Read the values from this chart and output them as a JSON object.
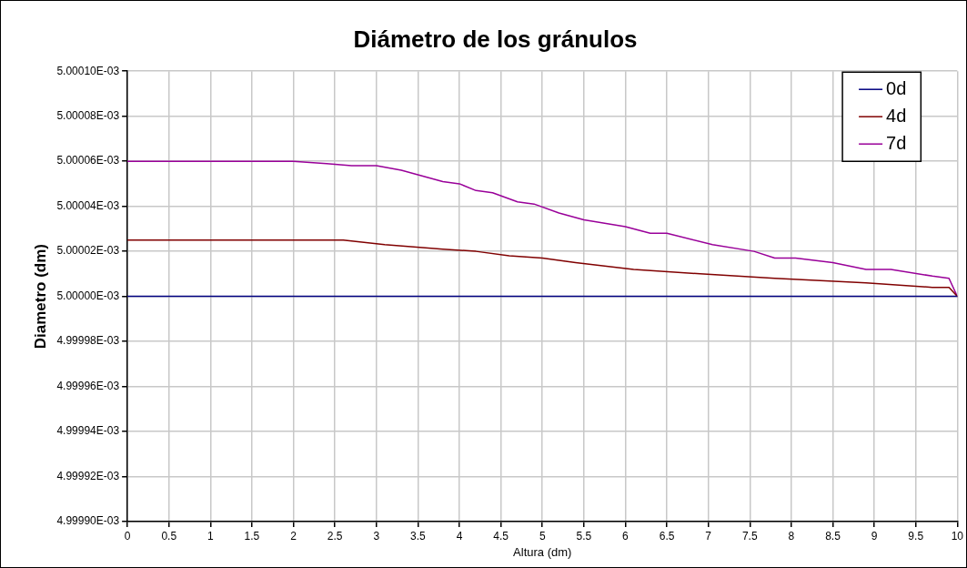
{
  "chart_data": {
    "type": "line",
    "title": "Diámetro de los gránulos",
    "xlabel": "Altura (dm)",
    "ylabel": "Diametro (dm)",
    "series": [
      {
        "name": "0d",
        "color": "#000080",
        "x": [
          0,
          10
        ],
        "values": [
          0.005,
          0.005
        ]
      },
      {
        "name": "4d",
        "color": "#800000",
        "x": [
          0,
          2.6,
          3.1,
          3.8,
          4.2,
          4.6,
          5,
          5.2,
          5.4,
          6.1,
          6.9,
          7.8,
          8.9,
          9.7,
          9.9,
          10
        ],
        "values": [
          0.005000025,
          0.005000025,
          0.005000023,
          0.005000021,
          0.00500002,
          0.005000018,
          0.005000017,
          0.005000016,
          0.005000015,
          0.005000012,
          0.00500001,
          0.005000008,
          0.005000006,
          0.005000004,
          0.005000004,
          0.005
        ]
      },
      {
        "name": "7d",
        "color": "#990099",
        "x": [
          0,
          2,
          2.4,
          2.7,
          3,
          3.3,
          3.5,
          3.8,
          4,
          4.2,
          4.4,
          4.7,
          4.9,
          5.2,
          5.5,
          6,
          6.3,
          6.5,
          7.05,
          7.55,
          7.8,
          8.05,
          8.5,
          8.9,
          9.2,
          9.7,
          9.9,
          10
        ],
        "values": [
          0.00500006,
          0.00500006,
          0.005000059,
          0.005000058,
          0.005000058,
          0.005000056,
          0.005000054,
          0.005000051,
          0.00500005,
          0.005000047,
          0.005000046,
          0.005000042,
          0.005000041,
          0.005000037,
          0.005000034,
          0.005000031,
          0.005000028,
          0.005000028,
          0.005000023,
          0.00500002,
          0.005000017,
          0.005000017,
          0.005000015,
          0.005000012,
          0.005000012,
          0.005000009,
          0.005000008,
          0.005
        ]
      }
    ],
    "xlim": [
      0,
      10
    ],
    "xticks": [
      0,
      0.5,
      1,
      1.5,
      2,
      2.5,
      3,
      3.5,
      4,
      4.5,
      5,
      5.5,
      6,
      6.5,
      7,
      7.5,
      8,
      8.5,
      9,
      9.5,
      10
    ],
    "ylim": [
      0.0049999,
      0.0050001
    ],
    "yticks": [
      {
        "value": 0.0049999,
        "label": "4.99990E-03"
      },
      {
        "value": 0.00499992,
        "label": "4.99992E-03"
      },
      {
        "value": 0.00499994,
        "label": "4.99994E-03"
      },
      {
        "value": 0.00499996,
        "label": "4.99996E-03"
      },
      {
        "value": 0.00499998,
        "label": "4.99998E-03"
      },
      {
        "value": 0.005,
        "label": "5.00000E-03"
      },
      {
        "value": 0.00500002,
        "label": "5.00002E-03"
      },
      {
        "value": 0.00500004,
        "label": "5.00004E-03"
      },
      {
        "value": 0.00500006,
        "label": "5.00006E-03"
      },
      {
        "value": 0.00500008,
        "label": "5.00008E-03"
      },
      {
        "value": 0.0050001,
        "label": "5.00010E-03"
      }
    ],
    "grid": true,
    "legend": "top right",
    "marker": "none",
    "line_style": "solid"
  }
}
